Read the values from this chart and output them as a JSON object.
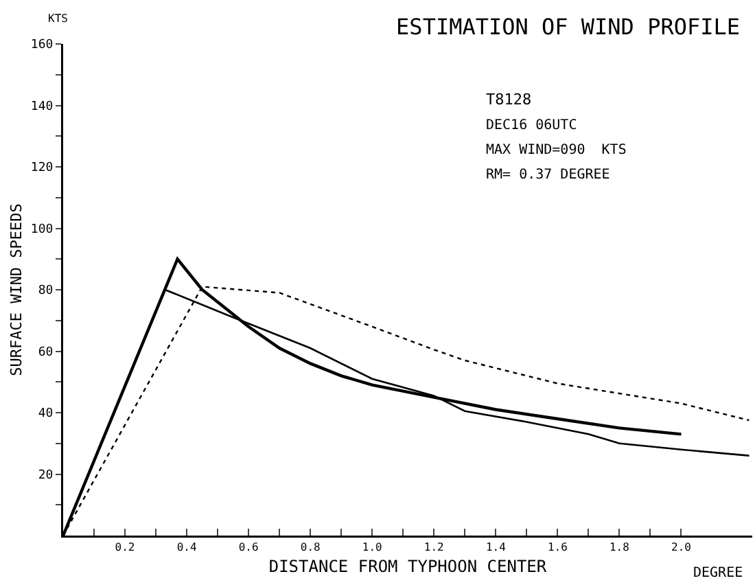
{
  "chart_data": {
    "type": "line",
    "title": "ESTIMATION OF WIND PROFILE",
    "xlabel": "DISTANCE FROM TYPHOON CENTER",
    "ylabel": "SURFACE WIND SPEEDS",
    "annotations": [
      "KTS",
      "DEGREE",
      "T8128",
      "DEC16 06UTC",
      "MAX WIND=090  KTS",
      "RM= 0.37 DEGREE"
    ],
    "series": [
      {
        "color": "#000000",
        "line_style": "solid",
        "x": [
          0,
          0.37,
          0.45,
          0.55,
          0.6,
          0.7,
          0.8,
          0.9,
          1.0,
          1.1,
          1.2,
          1.4,
          1.6,
          1.8,
          2.0
        ],
        "values": [
          0,
          90,
          80,
          72,
          68,
          61,
          56,
          52,
          49,
          47,
          45,
          41,
          38,
          35,
          33
        ]
      },
      {
        "color": "#000000",
        "line_style": "solid",
        "x": [
          0,
          0.33,
          0.55,
          0.8,
          1.0,
          1.2,
          1.3,
          1.5,
          1.7,
          1.8,
          2.0,
          2.22
        ],
        "values": [
          0,
          80,
          71,
          61,
          51,
          45.5,
          40.5,
          37,
          33,
          30,
          28,
          26
        ]
      },
      {
        "color": "#000000",
        "line_style": "dotted",
        "x": [
          0,
          0.45,
          0.7,
          1.0,
          1.2,
          1.3,
          1.6,
          2.0,
          2.22
        ],
        "values": [
          0,
          81,
          79,
          68,
          60.5,
          57,
          49.5,
          43,
          37.5
        ]
      }
    ],
    "xlim": [
      0,
      2.23
    ],
    "ylim": [
      0,
      160
    ],
    "xticks": [
      {
        "value": 0.1,
        "label": null
      },
      0.2,
      {
        "value": 0.3,
        "label": null
      },
      0.4,
      {
        "value": 0.5,
        "label": null
      },
      0.6,
      {
        "value": 0.7,
        "label": null
      },
      0.8,
      {
        "value": 0.9,
        "label": null
      },
      {
        "value": 1.0,
        "label": "1.0"
      },
      {
        "value": 1.1,
        "label": null
      },
      1.2,
      {
        "value": 1.3,
        "label": null
      },
      1.4,
      {
        "value": 1.5,
        "label": null
      },
      1.6,
      {
        "value": 1.7,
        "label": null
      },
      1.8,
      {
        "value": 1.9,
        "label": null
      },
      {
        "value": 2.0,
        "label": "2.0"
      }
    ],
    "yticks": [
      {
        "value": 10,
        "label": null
      },
      20,
      {
        "value": 30,
        "label": null
      },
      40,
      {
        "value": 50,
        "label": null
      },
      60,
      {
        "value": 70,
        "label": null
      },
      80,
      {
        "value": 90,
        "label": null
      },
      100,
      {
        "value": 110,
        "label": null
      },
      120,
      {
        "value": 130,
        "label": null
      },
      140,
      {
        "value": 150,
        "label": null
      },
      160
    ],
    "grid": false,
    "marker": "none"
  }
}
